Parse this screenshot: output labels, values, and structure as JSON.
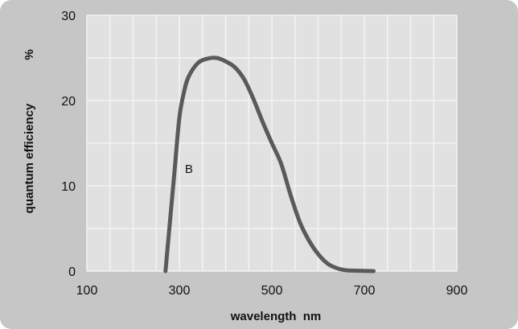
{
  "chart_data": {
    "type": "line",
    "title": "",
    "xlabel": "wavelength  nm",
    "ylabel": "quantum efficiency",
    "yunit": "%",
    "xlim": [
      100,
      900
    ],
    "ylim": [
      0,
      30
    ],
    "xticks": [
      100,
      300,
      500,
      700,
      900
    ],
    "yticks": [
      0,
      10,
      20,
      30
    ],
    "grid": true,
    "x_minor_step": 50,
    "y_minor_step": 5,
    "series": [
      {
        "name": "B",
        "color": "#5a5a5a",
        "x": [
          270,
          280,
          290,
          300,
          310,
          320,
          340,
          360,
          380,
          400,
          420,
          440,
          460,
          480,
          500,
          520,
          540,
          560,
          580,
          600,
          620,
          640,
          660,
          680,
          700,
          720
        ],
        "y": [
          0,
          6,
          12,
          18,
          21,
          22.8,
          24.4,
          24.9,
          25,
          24.6,
          23.9,
          22.5,
          20.2,
          17.5,
          15,
          12.6,
          9,
          5.8,
          3.6,
          2,
          0.9,
          0.35,
          0.1,
          0.05,
          0.02,
          0
        ]
      }
    ],
    "annotations": [
      {
        "text": "B",
        "x": 312,
        "y": 12
      }
    ]
  }
}
